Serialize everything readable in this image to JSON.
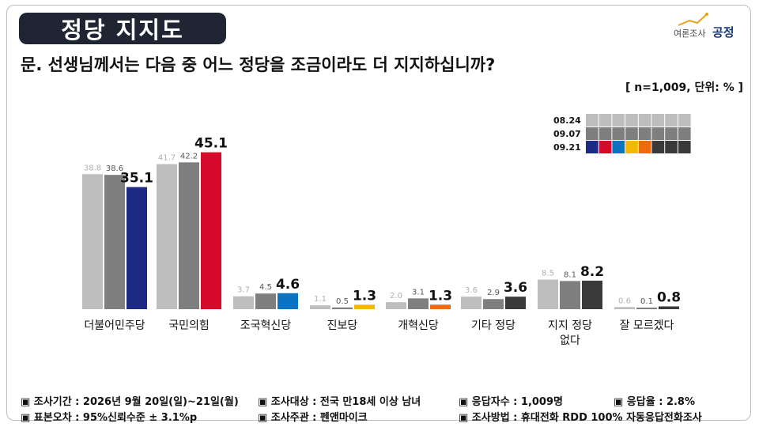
{
  "header": {
    "title": "정당 지지도",
    "logo_small": "여론조사",
    "logo_brand": "공정",
    "question": "문. 선생님께서는 다음 중 어느 정당을 조금이라도 더 지지하십니까?",
    "unit_note": "[ n=1,009, 단위: % ]"
  },
  "chart_data": {
    "type": "bar",
    "categories": [
      "더불어민주당",
      "국민의힘",
      "조국혁신당",
      "진보당",
      "개혁신당",
      "기타 정당",
      "지지 정당 없다",
      "잘 모르겠다"
    ],
    "series": [
      {
        "name": "08.24",
        "values": [
          38.8,
          41.7,
          3.7,
          1.1,
          2.0,
          3.6,
          8.5,
          0.6
        ]
      },
      {
        "name": "09.07",
        "values": [
          38.6,
          42.2,
          4.5,
          0.5,
          3.1,
          2.9,
          8.1,
          0.1
        ]
      },
      {
        "name": "09.21",
        "values": [
          35.1,
          45.1,
          4.6,
          1.3,
          1.3,
          3.6,
          8.2,
          0.8
        ]
      }
    ],
    "ylim": [
      0,
      50
    ],
    "grid": false,
    "legend_position": "top-right",
    "colors": {
      "series_08_24": "#bdbdbd",
      "series_09_07": "#7f7f7f",
      "latest_by_party": [
        "#1d2a86",
        "#d6092b",
        "#0a74c2",
        "#f5b800",
        "#f06a0f",
        "#3a3a3a",
        "#3a3a3a",
        "#3a3a3a"
      ]
    }
  },
  "footer": {
    "items": [
      "▣ 조사기간 : 2026년 9월 20일(일)~21일(월)",
      "▣ 조사대상 : 전국 만18세 이상 남녀",
      "▣ 응답자수 : 1,009명",
      "▣ 응답율 : 2.8%",
      "▣ 표본오차 : 95%신뢰수준 ± 3.1%p",
      "▣ 조사주관 : 펜앤마이크",
      "▣ 조사방법 : 휴대전화 RDD 100% 자동응답전화조사"
    ]
  }
}
